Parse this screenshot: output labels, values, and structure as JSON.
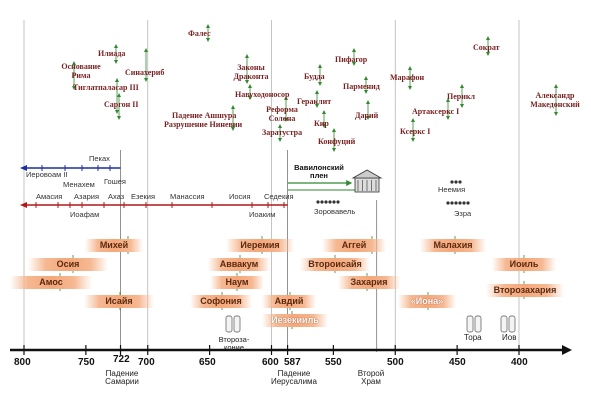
{
  "events": [
    {
      "id": "ilada",
      "text": "Илиада"
    },
    {
      "id": "osnovanie_rima",
      "text": "Основание Рима"
    },
    {
      "id": "tiglatpalasar",
      "text": "Тиглатпаласар III"
    },
    {
      "id": "sinaherib",
      "text": "Синахериб"
    },
    {
      "id": "sargon",
      "text": "Саргон II"
    },
    {
      "id": "fales",
      "text": "Фалес"
    },
    {
      "id": "zakony_drakonta",
      "text": "Законы Драконта"
    },
    {
      "id": "navuhodonosor",
      "text": "Навуходоносор"
    },
    {
      "id": "padenie_ashura",
      "text": "Падение Ашшура"
    },
    {
      "id": "razrushenie_ninevii",
      "text": "Разрушение Ниневии"
    },
    {
      "id": "reforma_solona",
      "text": "Реформа Солона"
    },
    {
      "id": "zaratustra",
      "text": "Заратустра"
    },
    {
      "id": "budda",
      "text": "Будда"
    },
    {
      "id": "geraklit",
      "text": "Гераклит"
    },
    {
      "id": "kir",
      "text": "Кир"
    },
    {
      "id": "konfucij",
      "text": "Конфуций"
    },
    {
      "id": "pifagor",
      "text": "Пифагор"
    },
    {
      "id": "parmenid",
      "text": "Парменид"
    },
    {
      "id": "darij",
      "text": "Дарий"
    },
    {
      "id": "marafon",
      "text": "Марафон"
    },
    {
      "id": "kserks",
      "text": "Ксеркс I"
    },
    {
      "id": "perikl",
      "text": "Перикл"
    },
    {
      "id": "artakserks",
      "text": "Артаксеркс I"
    },
    {
      "id": "sokrat",
      "text": "Сократ"
    },
    {
      "id": "aleksandr",
      "text": "Александр Македонский"
    }
  ],
  "kings_north": {
    "label_pekah": "Пеках",
    "label_ierovoam": "Иеровоам II",
    "label_menahem": "Менахем",
    "label_goshea": "Гошея"
  },
  "kings_south": [
    "Амасия",
    "Азария",
    "Ахаз",
    "Езекия",
    "Манассия",
    "Иосия",
    "Седекия"
  ],
  "kings_south_sub": {
    "ioafam": "Иоафам",
    "ioakim": "Иоаким"
  },
  "babylon": {
    "title": "Вавилонский плен",
    "zorovavel": "Зоровавель",
    "neemiya": "Неемия",
    "ezra": "Эзра"
  },
  "prophets": [
    {
      "id": "mihej",
      "text": "Михей"
    },
    {
      "id": "osiya",
      "text": "Осия"
    },
    {
      "id": "amos",
      "text": "Амос"
    },
    {
      "id": "isaiya",
      "text": "Исайя"
    },
    {
      "id": "ieremiya",
      "text": "Иеремия"
    },
    {
      "id": "avvakum",
      "text": "Аввакум"
    },
    {
      "id": "naum",
      "text": "Наум"
    },
    {
      "id": "sofoniya",
      "text": "Софония"
    },
    {
      "id": "avdij",
      "text": "Авдий"
    },
    {
      "id": "iezekiil",
      "text": "Иезекииль"
    },
    {
      "id": "aggej",
      "text": "Аггей"
    },
    {
      "id": "vtoroisaiya",
      "text": "Второисайя"
    },
    {
      "id": "zahariya",
      "text": "Захария"
    },
    {
      "id": "iona",
      "text": "«Иона»"
    },
    {
      "id": "malahiya",
      "text": "Малахия"
    },
    {
      "id": "ionl",
      "text": "Иоиль"
    },
    {
      "id": "vtorozahariya",
      "text": "Второзахария"
    }
  ],
  "books": {
    "vtorozakonie": "Второза-коние",
    "tora": "Тора",
    "iov": "Иов"
  },
  "axis": {
    "ticks": [
      800,
      750,
      722,
      700,
      650,
      600,
      587,
      550,
      500,
      450,
      400
    ],
    "captions": {
      "samaria": "Падение Самарии",
      "jerusalem": "Падение Иерусалима",
      "temple": "Второй Храм"
    }
  },
  "colors": {
    "event": "#7a1f1f",
    "north_line": "#1a2fa0",
    "south_line": "#b01818",
    "bar": "#f4a77a",
    "arrow": "#2f8a2f"
  }
}
